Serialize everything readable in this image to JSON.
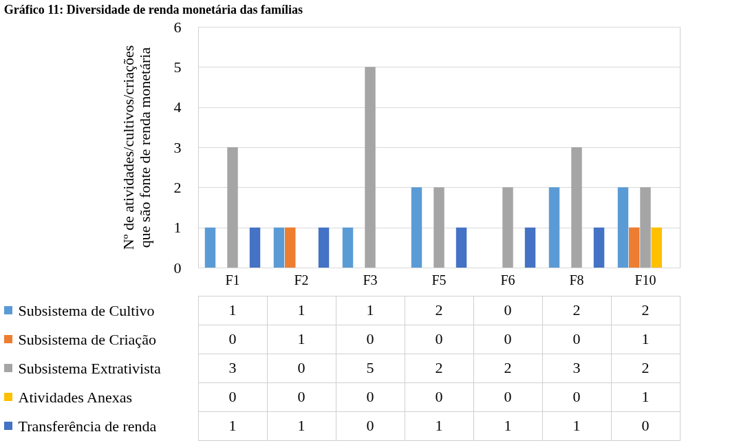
{
  "chart_data": {
    "type": "bar",
    "title": "Gráfico 11: Diversidade de renda monetária das famílias",
    "ylabel": "Nº de atividades/cultivos/criações\nque são fonte de renda  monetária",
    "categories": [
      "F1",
      "F2",
      "F3",
      "F5",
      "F6",
      "F8",
      "F10"
    ],
    "series": [
      {
        "name": "Subsistema de Cultivo",
        "color": "#5b9bd5",
        "values": [
          1,
          1,
          1,
          2,
          0,
          2,
          2
        ]
      },
      {
        "name": "Subsistema de Criação",
        "color": "#ed7d31",
        "values": [
          0,
          1,
          0,
          0,
          0,
          0,
          1
        ]
      },
      {
        "name": "Subsistema Extrativista",
        "color": "#a5a5a5",
        "values": [
          3,
          0,
          5,
          2,
          2,
          3,
          2
        ]
      },
      {
        "name": "Atividades Anexas",
        "color": "#ffc000",
        "values": [
          0,
          0,
          0,
          0,
          0,
          0,
          1
        ]
      },
      {
        "name": "Transferência de renda",
        "color": "#4472c4",
        "values": [
          1,
          1,
          0,
          1,
          1,
          1,
          0
        ]
      }
    ],
    "ylim": [
      0,
      6
    ],
    "yticks": [
      0,
      1,
      2,
      3,
      4,
      5,
      6
    ],
    "grid": "y",
    "legend": "bottom",
    "data_labels": true
  }
}
